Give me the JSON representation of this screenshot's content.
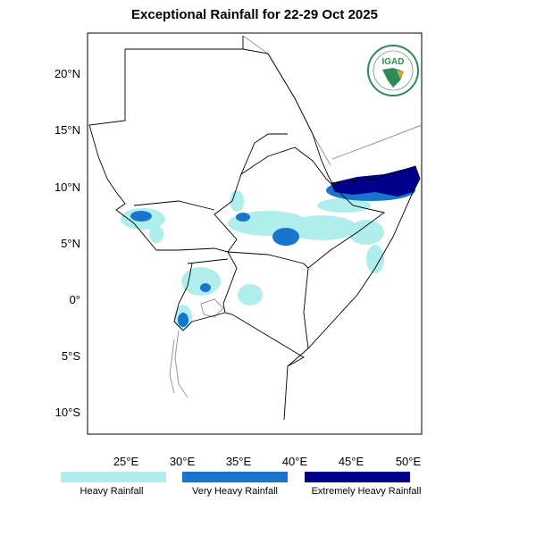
{
  "title": "Exceptional Rainfall for 22-29 Oct 2025",
  "map": {
    "lon_range": [
      21.6,
      51.2
    ],
    "lat_range": [
      -12,
      23.6
    ],
    "lon_ticks": [
      "25°E",
      "30°E",
      "35°E",
      "40°E",
      "45°E",
      "50°E"
    ],
    "lat_ticks": [
      "20°N",
      "15°N",
      "10°N",
      "5°N",
      "0°",
      "5°S",
      "10°S"
    ],
    "logo_text": "IGAD"
  },
  "legend": [
    {
      "label": "Heavy Rainfall",
      "color": "#b0eeee"
    },
    {
      "label": "Very Heavy Rainfall",
      "color": "#1874cd"
    },
    {
      "label": "Extremely Heavy Rainfall",
      "color": "#00008b"
    }
  ]
}
